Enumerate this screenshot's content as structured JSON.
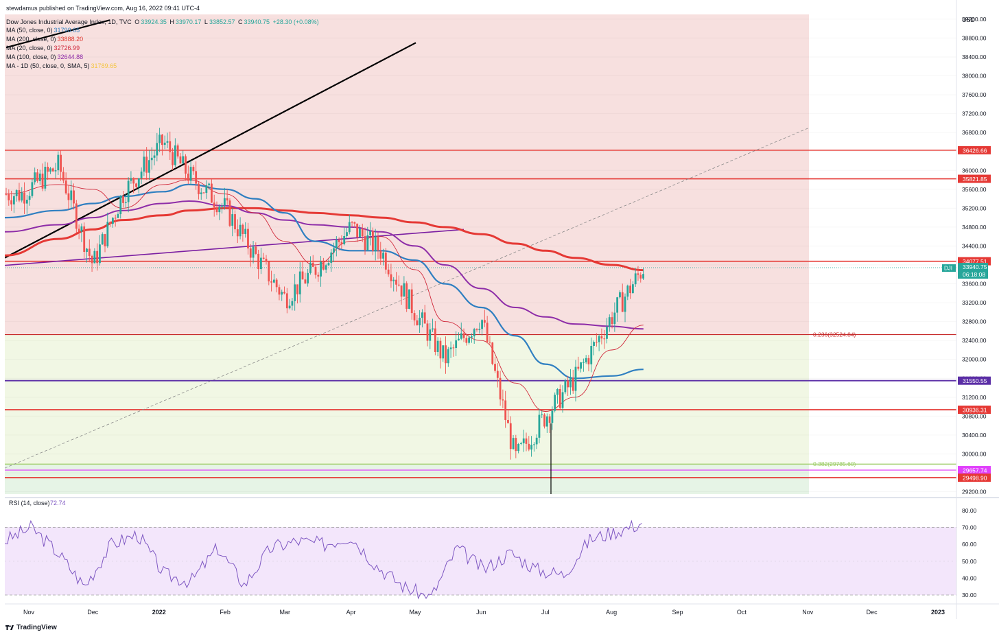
{
  "publisher_line": "stewdamus published on TradingView.com, Aug 16, 2022 09:41 UTC-4",
  "symbol_line": {
    "name": "Dow Jones Industrial Average Index, 1D, TVC",
    "open_label": "O",
    "open": "33924.35",
    "high_label": "H",
    "high": "33970.17",
    "low_label": "L",
    "low": "33852.57",
    "close_label": "C",
    "close": "33940.75",
    "change": "+28.30 (+0.08%)"
  },
  "indicators": [
    {
      "label": "MA (50, close, 0)",
      "value": "31790.65",
      "color": "#2f7fc1"
    },
    {
      "label": "MA (200, close, 0)",
      "value": "33888.20",
      "color": "#e0382f"
    },
    {
      "label": "MA (20, close, 0)",
      "value": "32726.99",
      "color": "#d0283a"
    },
    {
      "label": "MA (100, close, 0)",
      "value": "32644.88",
      "color": "#8e2da8"
    },
    {
      "label": "MA - 1D (50, close, 0, SMA, 5)",
      "value": "31789.65",
      "color": "#f4c542"
    }
  ],
  "currency": "USD",
  "price_axis": [
    "39200.00",
    "38800.00",
    "38400.00",
    "38000.00",
    "37600.00",
    "37200.00",
    "36800.00",
    "36400.00",
    "36000.00",
    "35600.00",
    "35200.00",
    "34800.00",
    "34400.00",
    "34000.00",
    "33600.00",
    "33200.00",
    "32800.00",
    "32400.00",
    "32000.00",
    "31600.00",
    "31200.00",
    "30800.00",
    "30400.00",
    "30000.00",
    "29600.00",
    "29200.00"
  ],
  "price_badges": [
    {
      "text": "36426.66",
      "color": "#e53935"
    },
    {
      "text": "35821.85",
      "color": "#e53935"
    },
    {
      "text": "34077.51",
      "color": "#e53935"
    },
    {
      "text": "31550.55",
      "color": "#5b2ea6"
    },
    {
      "text": "30936.31",
      "color": "#e53935"
    },
    {
      "text": "29657.74",
      "color": "#e040fb"
    },
    {
      "text": "29498.90",
      "color": "#e53935"
    }
  ],
  "last_price": {
    "symbol": "DJI",
    "price": "33940.75",
    "countdown": "06:18:08",
    "color": "#26a69a"
  },
  "fib_labels": [
    {
      "text": "0.236(32524.84)",
      "color": "#c62828"
    },
    {
      "text": "0.382(29785.60)",
      "color": "#9ccc65"
    }
  ],
  "rsi": {
    "label": "RSI (14, close)",
    "value": "72.74",
    "axis": [
      "80.00",
      "70.00",
      "60.00",
      "50.00",
      "40.00",
      "30.00"
    ],
    "line_color": "#7e57c2"
  },
  "time_axis": [
    "Nov",
    "Dec",
    "2022",
    "Feb",
    "Mar",
    "Apr",
    "May",
    "Jun",
    "Jul",
    "Aug",
    "Sep",
    "Oct",
    "Nov",
    "Dec",
    "2023"
  ],
  "brand": "TradingView",
  "chart_data": {
    "type": "candlestick",
    "ylim": [
      29150,
      39300
    ],
    "x": [
      "2021-10-29",
      "2021-11-15",
      "2021-12-01",
      "2021-12-15",
      "2022-01-03",
      "2022-01-15",
      "2022-02-01",
      "2022-02-15",
      "2022-03-01",
      "2022-03-15",
      "2022-04-01",
      "2022-04-15",
      "2022-05-01",
      "2022-05-15",
      "2022-06-01",
      "2022-06-17",
      "2022-07-01",
      "2022-07-15",
      "2022-08-01",
      "2022-08-16"
    ],
    "close": [
      35500,
      36100,
      34000,
      35500,
      36600,
      35900,
      35200,
      34200,
      33300,
      33900,
      34800,
      34300,
      33000,
      32000,
      32900,
      29900,
      30800,
      31600,
      32900,
      33940
    ],
    "series": [
      {
        "name": "MA (200, close, 0)",
        "values": [
          34200,
          34550,
          34750,
          34950,
          35050,
          35150,
          35200,
          35200,
          35150,
          35100,
          35050,
          35000,
          34900,
          34800,
          34650,
          34450,
          34300,
          34150,
          34000,
          33890
        ]
      },
      {
        "name": "MA (100, close, 0)",
        "values": [
          34700,
          34850,
          35000,
          35150,
          35300,
          35350,
          35250,
          35100,
          34950,
          34850,
          34800,
          34700,
          34400,
          34000,
          33500,
          33100,
          32900,
          32750,
          32700,
          32645
        ]
      },
      {
        "name": "MA (50, close, 0)",
        "values": [
          35000,
          35150,
          35300,
          35450,
          35550,
          35700,
          35600,
          35400,
          35100,
          34500,
          34300,
          34300,
          34100,
          33600,
          33100,
          32500,
          31900,
          31600,
          31650,
          31790
        ]
      },
      {
        "name": "MA (20, close, 0)",
        "values": [
          35500,
          35700,
          35600,
          35200,
          35700,
          35800,
          35500,
          35100,
          34500,
          34000,
          34500,
          34600,
          33900,
          32800,
          32400,
          31500,
          30900,
          31200,
          32200,
          32727
        ]
      }
    ],
    "horizontal_levels": [
      36426.66,
      35821.85,
      34077.51,
      32524.84,
      31550.55,
      30936.31,
      29785.6,
      29657.74,
      29498.9
    ],
    "rsi_values": [
      62,
      70,
      55,
      35,
      60,
      66,
      42,
      38,
      58,
      36,
      58,
      62,
      60,
      65,
      47,
      35,
      28,
      58,
      45,
      55,
      45,
      42,
      63,
      68,
      72.74
    ]
  }
}
